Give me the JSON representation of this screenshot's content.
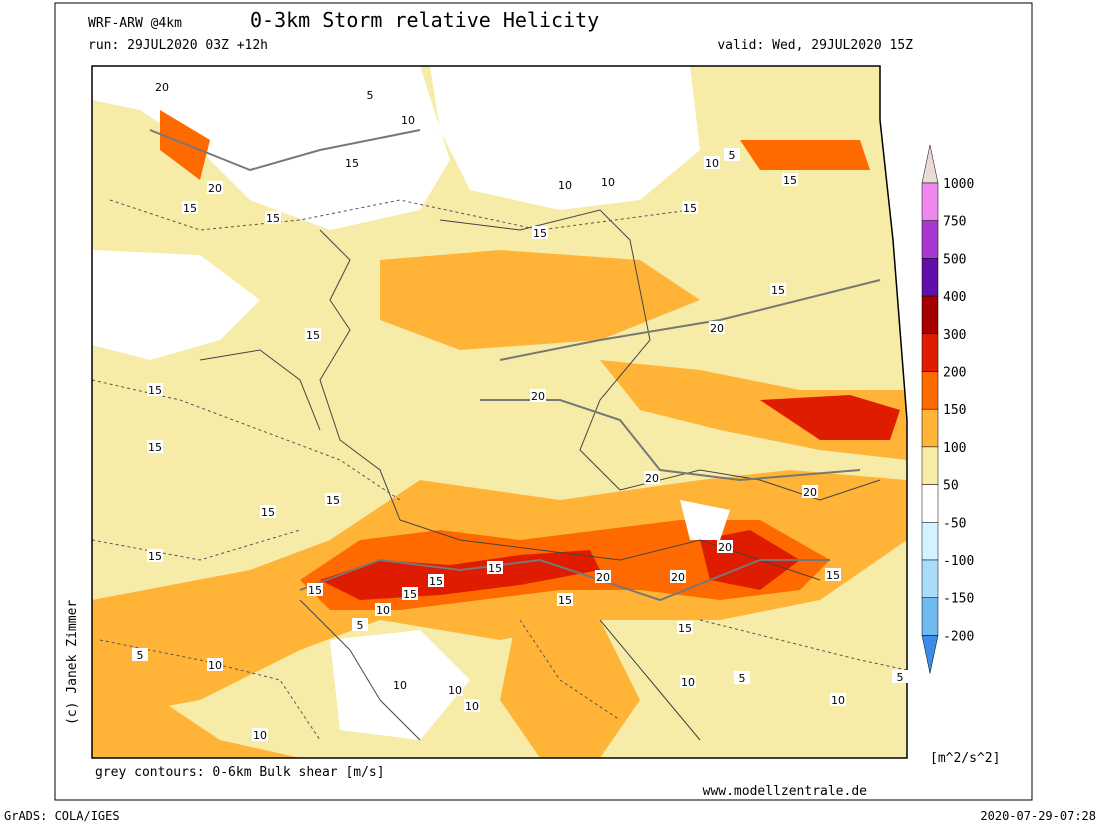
{
  "header": {
    "model": "WRF-ARW @4km",
    "title": "0-3km Storm relative Helicity",
    "run": "run: 29JUL2020 03Z +12h",
    "valid": "valid: Wed, 29JUL2020 15Z"
  },
  "colorbar": {
    "levels": [
      1000,
      750,
      500,
      400,
      300,
      200,
      150,
      100,
      50,
      -50,
      -100,
      -150,
      -200
    ],
    "colors": [
      "#eadcd4",
      "#ee88ee",
      "#a838d0",
      "#6010a8",
      "#a40000",
      "#e01c00",
      "#ff6a00",
      "#ffb438",
      "#f6eca8",
      "#ffffff",
      "#d4f2ff",
      "#a8dcf8",
      "#70b8f0",
      "#3c8ce8"
    ],
    "unit": "[m^2/s^2]"
  },
  "footer": {
    "contours_note": "grey contours: 0-6km Bulk shear [m/s]",
    "website": "www.modellzentrale.de",
    "credit": "(c) Janek Zimmer",
    "grads": "GrADS: COLA/IGES",
    "timestamp": "2020-07-29-07:28"
  },
  "contour_labels": [
    20,
    20,
    15,
    15,
    5,
    10,
    15,
    15,
    15,
    5,
    10,
    15,
    10,
    10,
    15,
    20,
    15,
    15,
    20,
    15,
    20,
    20,
    15,
    15,
    15,
    20,
    20,
    20,
    15,
    15,
    15,
    10,
    15,
    5,
    15,
    15,
    15,
    5,
    10,
    10,
    10,
    10,
    10,
    5,
    10,
    5,
    10
  ]
}
